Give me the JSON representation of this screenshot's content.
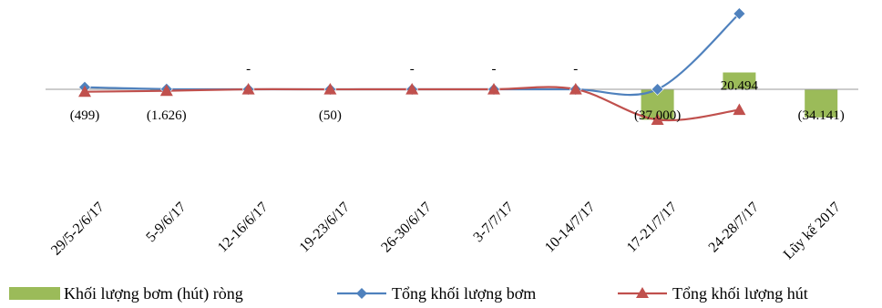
{
  "chart_data": {
    "type": "bar",
    "title": "",
    "xlabel": "",
    "ylabel": "",
    "grid": false,
    "legend_position": "bottom",
    "ylim": [
      -120000,
      100000
    ],
    "categories": [
      "29/5-2/6/17",
      "5-9/6/17",
      "12-16/6/17",
      "19-23/6/17",
      "26-30/6/17",
      "3-7/7/17",
      "10-14/7/17",
      "17-21/7/17",
      "24-28/7/17",
      "Lũy kế 2017"
    ],
    "series": [
      {
        "name": "Khối lượng bơm (hút) ròng",
        "kind": "bar",
        "color": "#9BBB59",
        "values": [
          -499,
          -1626,
          0,
          -50,
          0,
          0,
          0,
          -37000,
          20494,
          -34141
        ],
        "labels": [
          "(499)",
          "(1.626)",
          "-",
          "(50)",
          "-",
          "-",
          "-",
          "(37.000)",
          "20.494",
          "(34.141)"
        ]
      },
      {
        "name": "Tổng khối lượng bơm",
        "kind": "line",
        "color": "#4F81BD",
        "marker": "diamond",
        "values": [
          2500,
          200,
          0,
          0,
          0,
          0,
          0,
          0,
          92000,
          null
        ]
      },
      {
        "name": "Tổng khối lượng hút",
        "kind": "line",
        "color": "#C0504D",
        "marker": "triangle",
        "values": [
          -3000,
          -1800,
          0,
          -50,
          0,
          0,
          0,
          -37000,
          -25000,
          null
        ]
      }
    ]
  }
}
